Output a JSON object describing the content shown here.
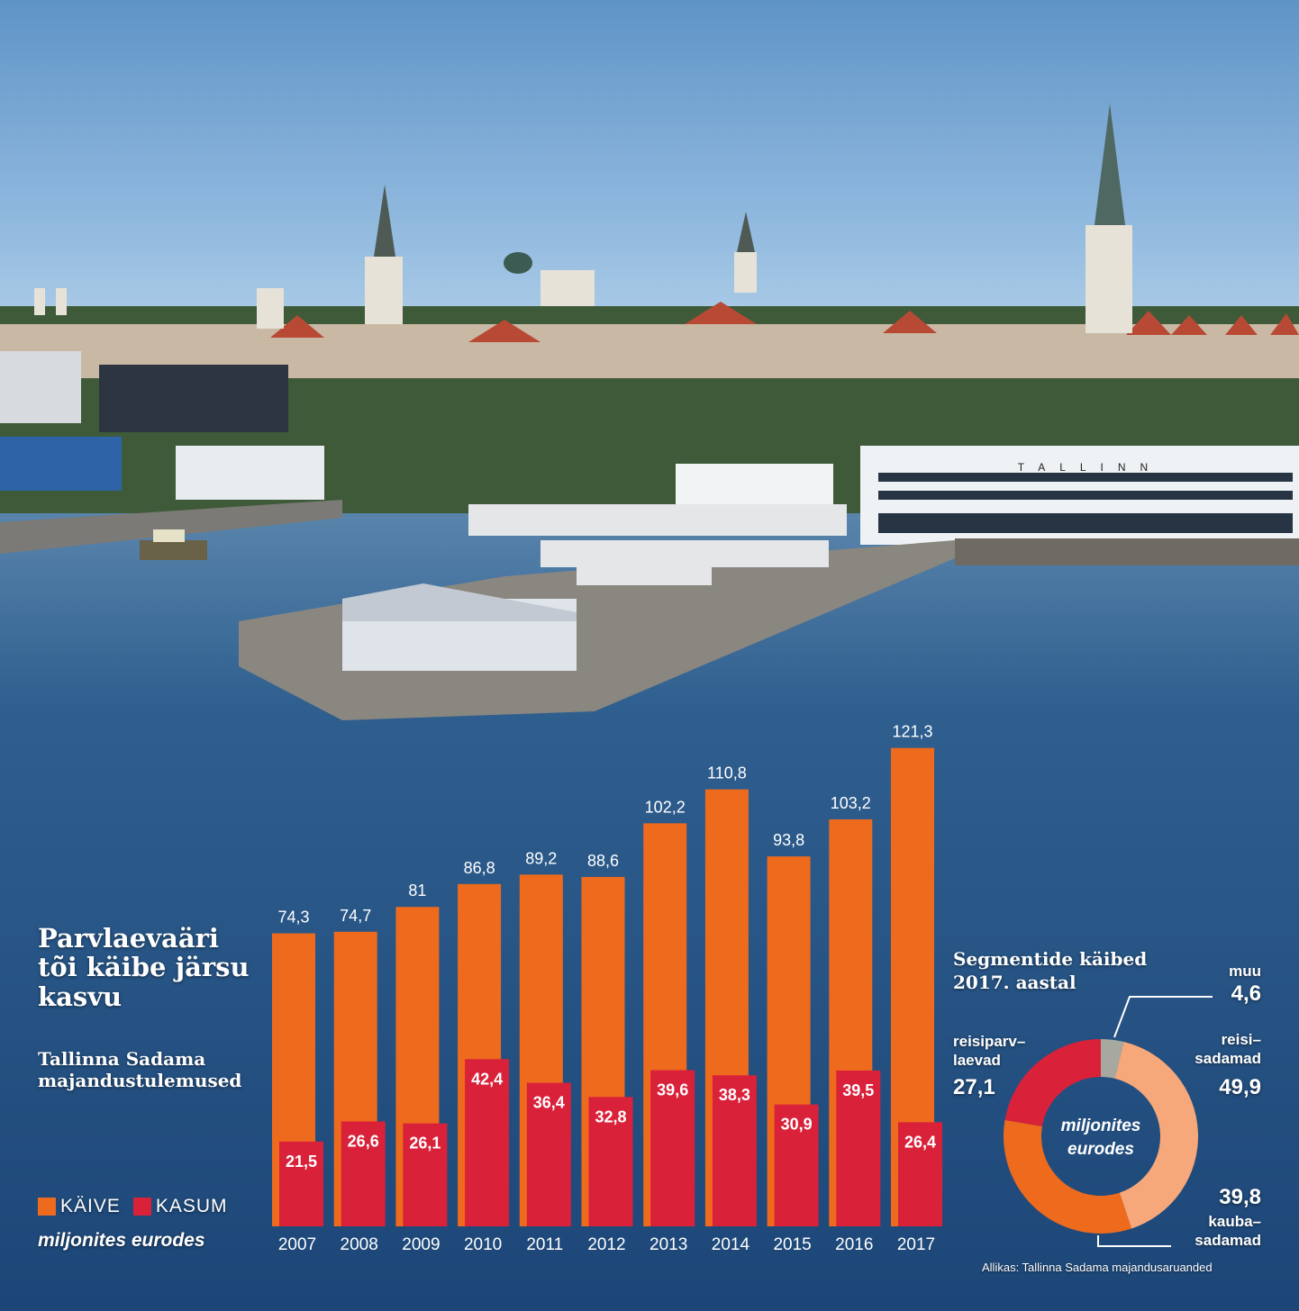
{
  "title": "Parvlaevaäri tõi käibe järsu kasvu",
  "subtitle": "Tallinna Sadama majandustulemused",
  "photo_sign": "TALLINN",
  "legend": {
    "kaive": "KÄIVE",
    "kasum": "KASUM"
  },
  "unit_label": "miljonites eurodes",
  "colors": {
    "kaive": "#ee6a1d",
    "kasum": "#d9213a"
  },
  "chart_data": [
    {
      "type": "bar",
      "categories": [
        "2007",
        "2008",
        "2009",
        "2010",
        "2011",
        "2012",
        "2013",
        "2014",
        "2015",
        "2016",
        "2017"
      ],
      "series": [
        {
          "name": "KÄIVE",
          "values": [
            74.3,
            74.7,
            81,
            86.8,
            89.2,
            88.6,
            102.2,
            110.8,
            93.8,
            103.2,
            121.3
          ],
          "labels": [
            "74,3",
            "74,7",
            "81",
            "86,8",
            "89,2",
            "88,6",
            "102,2",
            "110,8",
            "93,8",
            "103,2",
            "121,3"
          ]
        },
        {
          "name": "KASUM",
          "values": [
            21.5,
            26.6,
            26.1,
            42.4,
            36.4,
            32.8,
            39.6,
            38.3,
            30.9,
            39.5,
            26.4
          ],
          "labels": [
            "21,5",
            "26,6",
            "26,1",
            "42,4",
            "36,4",
            "32,8",
            "39,6",
            "38,3",
            "30,9",
            "39,5",
            "26,4"
          ]
        }
      ],
      "title": "Parvlaevaäri tõi käibe järsu kasvu",
      "subtitle": "Tallinna Sadama majandustulemused",
      "ylabel": "miljonites eurodes",
      "ylim": [
        0,
        126
      ]
    },
    {
      "type": "pie",
      "title": "Segmentide käibed 2017. aastal",
      "center_label": "miljonites eurodes",
      "slices": [
        {
          "name": "muu",
          "value": 4.6,
          "label": "4,6",
          "color": "#a7a9a0"
        },
        {
          "name": "reisisadamad",
          "value": 49.9,
          "label": "49,9",
          "color": "#f6a87a"
        },
        {
          "name": "kaubasadamad",
          "value": 39.8,
          "label": "39,8",
          "color": "#ee6a1d"
        },
        {
          "name": "reisiparvlaevad",
          "value": 27.1,
          "label": "27,1",
          "color": "#d9213a"
        }
      ]
    }
  ],
  "donut_text": {
    "title": "Segmentide käibed 2017. aastal",
    "center": "miljonites eurodes",
    "muu_label": "muu",
    "muu_value": "4,6",
    "reisisadamad_label": "reisi–\nsadamad",
    "reisisadamad_value": "49,9",
    "reisiparvlaevad_label": "reisiparv–\nlaevad",
    "reisiparvlaevad_value": "27,1",
    "kaubasadamad_value": "39,8",
    "kaubasadamad_label": "kauba–\nsadamad"
  },
  "source": "Allikas: Tallinna Sadama majandusaruanded"
}
